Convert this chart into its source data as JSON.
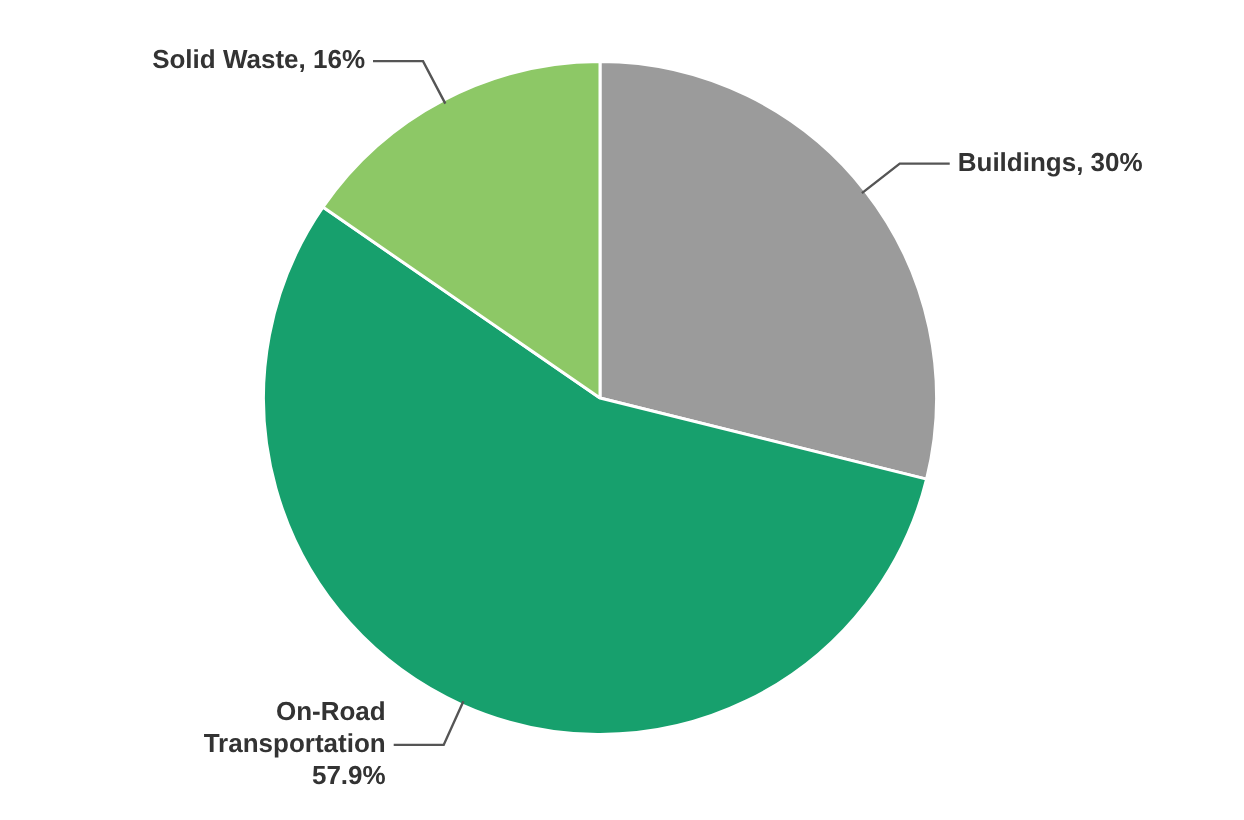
{
  "chart_data": {
    "type": "pie",
    "categories": [
      "Buildings",
      "On-Road Transportation",
      "Solid Waste"
    ],
    "values": [
      30,
      57.9,
      16
    ],
    "colors": [
      "#9b9b9b",
      "#17a06d",
      "#8dc866"
    ],
    "value_labels": [
      "30%",
      "57.9%",
      "16%"
    ],
    "legend": false
  }
}
